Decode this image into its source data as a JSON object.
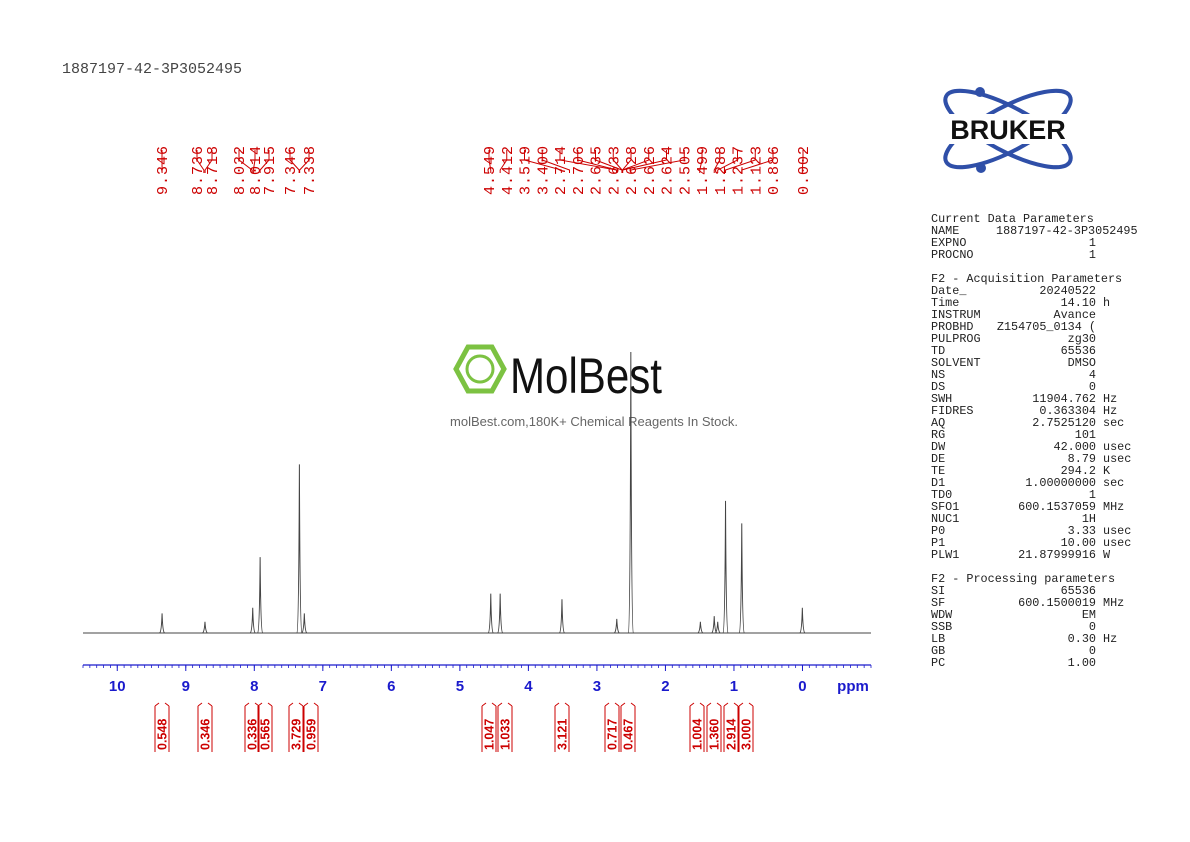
{
  "header": {
    "title": "1887197-42-3P3052495"
  },
  "watermark": {
    "brand": "MolBest",
    "tagline": "molBest.com,180K+ Chemical Reagents In Stock."
  },
  "logo": {
    "text": "BRUKER"
  },
  "chart_data": {
    "type": "spectrum",
    "xlabel": "ppm",
    "xlim": [
      10.5,
      -1.0
    ],
    "xticks": [
      10,
      9,
      8,
      7,
      6,
      5,
      4,
      3,
      2,
      1,
      0
    ],
    "line_color": "#444444",
    "label_color": "#cc0000",
    "axis_color": "#1a1acc",
    "peaks": {
      "x": [
        9.346,
        8.72,
        8.023,
        7.915,
        7.342,
        7.27,
        4.549,
        4.412,
        3.51,
        2.71,
        2.505,
        1.49,
        1.288,
        1.237,
        1.123,
        0.886,
        0.002
      ],
      "values": [
        7,
        4,
        9,
        27,
        60,
        7,
        14,
        14,
        12,
        5,
        100,
        4,
        6,
        4,
        47,
        39,
        9
      ]
    },
    "peak_labels": [
      9.346,
      8.736,
      8.718,
      8.032,
      8.014,
      7.915,
      7.346,
      7.338,
      4.549,
      4.412,
      3.519,
      {
        "value": 3.4,
        "label": "3.400"
      },
      2.714,
      2.706,
      2.635,
      2.633,
      2.628,
      2.626,
      2.624,
      2.505,
      1.499,
      1.288,
      1.237,
      1.123,
      0.886,
      0.002
    ],
    "integrals": [
      "0.548",
      "0.346",
      "0.336",
      "0.565",
      "3.729",
      "0.959",
      "1.047",
      "1.033",
      "3.121",
      "0.717",
      "0.467",
      "1.004",
      "1.360",
      "2.914",
      "3.000"
    ]
  },
  "parameters": [
    {
      "title": "Current Data Parameters",
      "rows": [
        [
          "NAME",
          "1887197-42-3P3052495"
        ],
        [
          "EXPNO",
          "1"
        ],
        [
          "PROCNO",
          "1"
        ]
      ]
    },
    {
      "title": "F2 - Acquisition Parameters",
      "rows": [
        [
          "Date_",
          "20240522"
        ],
        [
          "Time",
          "14.10",
          "h"
        ],
        [
          "INSTRUM",
          "Avance"
        ],
        [
          "PROBHD",
          "Z154705_0134 ("
        ],
        [
          "PULPROG",
          "zg30"
        ],
        [
          "TD",
          "65536"
        ],
        [
          "SOLVENT",
          "DMSO"
        ],
        [
          "NS",
          "4"
        ],
        [
          "DS",
          "0"
        ],
        [
          "SWH",
          "11904.762",
          "Hz"
        ],
        [
          "FIDRES",
          "0.363304",
          "Hz"
        ],
        [
          "AQ",
          "2.7525120",
          "sec"
        ],
        [
          "RG",
          "101"
        ],
        [
          "DW",
          "42.000",
          "usec"
        ],
        [
          "DE",
          "8.79",
          "usec"
        ],
        [
          "TE",
          "294.2",
          "K"
        ],
        [
          "D1",
          "1.00000000",
          "sec"
        ],
        [
          "TD0",
          "1"
        ],
        [
          "SFO1",
          "600.1537059",
          "MHz"
        ],
        [
          "NUC1",
          "1H"
        ],
        [
          "P0",
          "3.33",
          "usec"
        ],
        [
          "P1",
          "10.00",
          "usec"
        ],
        [
          "PLW1",
          "21.87999916",
          "W"
        ]
      ]
    },
    {
      "title": "F2 - Processing parameters",
      "rows": [
        [
          "SI",
          "65536"
        ],
        [
          "SF",
          "600.1500019",
          "MHz"
        ],
        [
          "WDW",
          "EM"
        ],
        [
          "SSB",
          "0"
        ],
        [
          "LB",
          "0.30",
          "Hz"
        ],
        [
          "GB",
          "0"
        ],
        [
          "PC",
          "1.00"
        ]
      ]
    }
  ]
}
